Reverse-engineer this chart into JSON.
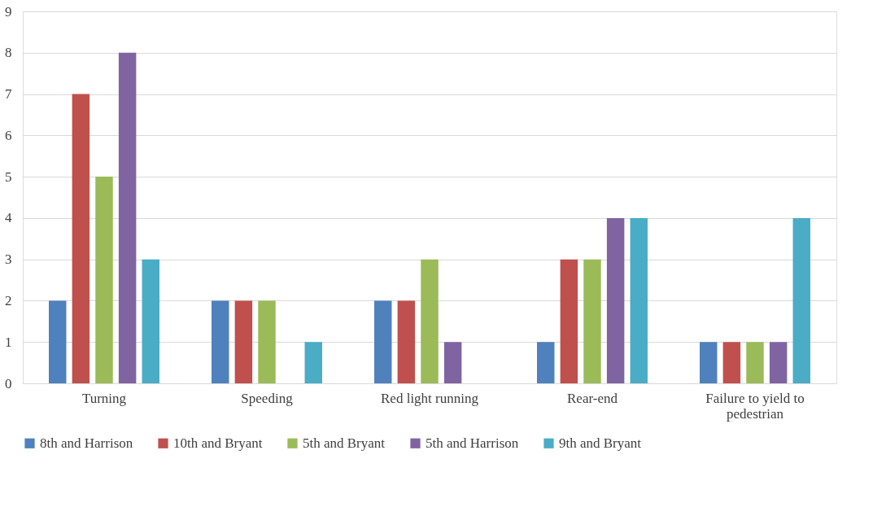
{
  "chart_data": {
    "type": "bar",
    "categories": [
      "Turning",
      "Speeding",
      "Red light running",
      "Rear-end",
      "Failure to yield to pedestrian"
    ],
    "series": [
      {
        "name": "8th and Harrison",
        "color": "#4f81bd",
        "values": [
          2,
          2,
          2,
          1,
          1
        ]
      },
      {
        "name": "10th and Bryant",
        "color": "#c0504d",
        "values": [
          7,
          2,
          2,
          3,
          1
        ]
      },
      {
        "name": "5th and Bryant",
        "color": "#9bbb59",
        "values": [
          5,
          2,
          3,
          3,
          1
        ]
      },
      {
        "name": "5th and Harrison",
        "color": "#8064a2",
        "values": [
          8,
          0,
          1,
          4,
          1
        ]
      },
      {
        "name": "9th and Bryant",
        "color": "#4bacc6",
        "values": [
          3,
          1,
          0,
          4,
          4
        ]
      }
    ],
    "ylim": [
      0,
      9
    ],
    "yticks": [
      0,
      1,
      2,
      3,
      4,
      5,
      6,
      7,
      8,
      9
    ],
    "grid": "y",
    "legend": "bottom"
  }
}
